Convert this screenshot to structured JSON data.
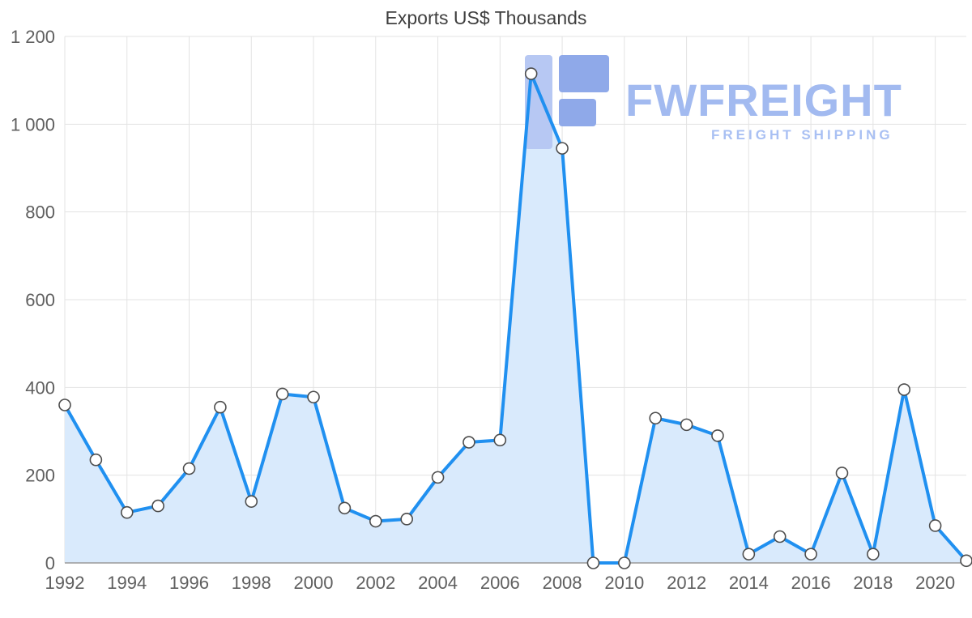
{
  "page": {
    "title": "Exports US$ Thousands"
  },
  "chart_data": {
    "type": "area",
    "title": "Exports US$ Thousands",
    "series_name": "Exports US$ Thousands",
    "x": [
      1992,
      1993,
      1994,
      1995,
      1996,
      1997,
      1998,
      1999,
      2000,
      2001,
      2002,
      2003,
      2004,
      2005,
      2006,
      2007,
      2008,
      2009,
      2010,
      2011,
      2012,
      2013,
      2014,
      2015,
      2016,
      2017,
      2018,
      2019,
      2020,
      2021
    ],
    "values": [
      360,
      235,
      115,
      130,
      215,
      355,
      140,
      385,
      378,
      125,
      95,
      100,
      195,
      275,
      280,
      1115,
      945,
      0,
      0,
      330,
      315,
      290,
      20,
      60,
      20,
      205,
      20,
      395,
      85,
      5
    ],
    "xlim": [
      1992,
      2021
    ],
    "ylim": [
      0,
      1200
    ],
    "xtick_values": [
      1992,
      1994,
      1996,
      1998,
      2000,
      2002,
      2004,
      2006,
      2008,
      2010,
      2012,
      2014,
      2016,
      2018,
      2020
    ],
    "xtick_labels": [
      "1992",
      "1994",
      "1996",
      "1998",
      "2000",
      "2002",
      "2004",
      "2006",
      "2008",
      "2010",
      "2012",
      "2014",
      "2016",
      "2018",
      "2020"
    ],
    "ytick_values": [
      0,
      200,
      400,
      600,
      800,
      1000,
      1200
    ],
    "ytick_labels": [
      "0",
      "200",
      "400",
      "600",
      "800",
      "1 000",
      "1 200"
    ],
    "grid": true,
    "legend": false,
    "xlabel": "",
    "ylabel": ""
  },
  "watermark": {
    "name": "FWFREIGHT",
    "tagline": "FREIGHT SHIPPING"
  },
  "colors": {
    "line": "#2090f0",
    "fill": "#d9eafc",
    "grid": "#e3e3e3",
    "axis": "#9a9a9a",
    "axis_text": "#5f5f5f",
    "marker_fill": "#ffffff",
    "marker_stroke": "#4d4d4d",
    "title": "#3f3f3f",
    "wm_text": "#a2baf0",
    "wm_tagline": "#a9c0f3",
    "wm_mark_dark": "#8fa9e9",
    "wm_mark_light": "#b7c8f3"
  }
}
